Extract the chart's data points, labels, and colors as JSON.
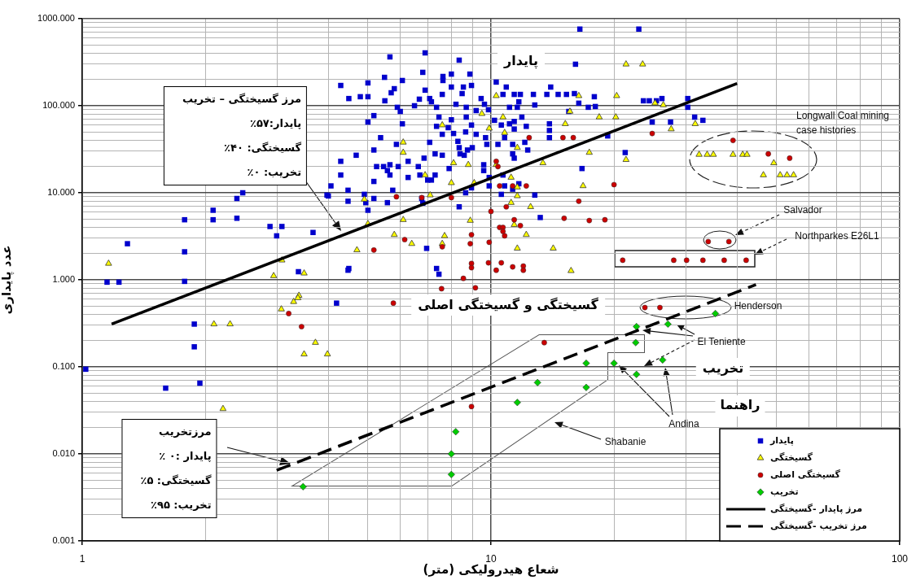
{
  "chart_data": {
    "type": "scatter",
    "xlabel": "شعاع هیدرولیکی (متر)",
    "ylabel": "عدد پایداری",
    "log": "xy",
    "grid": true,
    "legend": "bottom right",
    "legend_title": "راهنما",
    "xlim": [
      1,
      100
    ],
    "ylim": [
      0.001,
      1000
    ],
    "xticks": [
      1,
      {
        "value": 2,
        "label": null
      },
      {
        "value": 3,
        "label": null
      },
      {
        "value": 4,
        "label": null
      },
      {
        "value": 5,
        "label": null
      },
      {
        "value": 6,
        "label": null
      },
      {
        "value": 7,
        "label": null
      },
      {
        "value": 8,
        "label": null
      },
      {
        "value": 9,
        "label": null
      },
      10,
      {
        "value": 20,
        "label": null
      },
      {
        "value": 30,
        "label": null
      },
      {
        "value": 40,
        "label": null
      },
      {
        "value": 50,
        "label": null
      },
      {
        "value": 60,
        "label": null
      },
      {
        "value": 70,
        "label": null
      },
      {
        "value": 80,
        "label": null
      },
      {
        "value": 90,
        "label": null
      },
      100
    ],
    "yticks": [
      0.001,
      {
        "value": 0.002,
        "label": null
      },
      {
        "value": 0.003,
        "label": null
      },
      {
        "value": 0.004,
        "label": null
      },
      {
        "value": 0.005,
        "label": null
      },
      {
        "value": 0.006,
        "label": null
      },
      {
        "value": 0.007,
        "label": null
      },
      {
        "value": 0.008,
        "label": null
      },
      {
        "value": 0.009,
        "label": null
      },
      {
        "value": 0.01,
        "label": "0.010"
      },
      {
        "value": 0.02,
        "label": null
      },
      {
        "value": 0.03,
        "label": null
      },
      {
        "value": 0.04,
        "label": null
      },
      {
        "value": 0.05,
        "label": null
      },
      {
        "value": 0.06,
        "label": null
      },
      {
        "value": 0.07,
        "label": null
      },
      {
        "value": 0.08,
        "label": null
      },
      {
        "value": 0.09,
        "label": null
      },
      {
        "value": 0.1,
        "label": "0.100"
      },
      {
        "value": 0.2,
        "label": null
      },
      {
        "value": 0.3,
        "label": null
      },
      {
        "value": 0.4,
        "label": null
      },
      {
        "value": 0.5,
        "label": null
      },
      {
        "value": 0.6,
        "label": null
      },
      {
        "value": 0.7,
        "label": null
      },
      {
        "value": 0.8,
        "label": null
      },
      {
        "value": 0.9,
        "label": null
      },
      {
        "value": 1,
        "label": "1.000"
      },
      {
        "value": 2,
        "label": null
      },
      {
        "value": 3,
        "label": null
      },
      {
        "value": 4,
        "label": null
      },
      {
        "value": 5,
        "label": null
      },
      {
        "value": 6,
        "label": null
      },
      {
        "value": 7,
        "label": null
      },
      {
        "value": 8,
        "label": null
      },
      {
        "value": 9,
        "label": null
      },
      {
        "value": 10,
        "label": "10.000"
      },
      {
        "value": 20,
        "label": null
      },
      {
        "value": 30,
        "label": null
      },
      {
        "value": 40,
        "label": null
      },
      {
        "value": 50,
        "label": null
      },
      {
        "value": 60,
        "label": null
      },
      {
        "value": 70,
        "label": null
      },
      {
        "value": 80,
        "label": null
      },
      {
        "value": 90,
        "label": null
      },
      {
        "value": 100,
        "label": "100.000"
      },
      {
        "value": 200,
        "label": null
      },
      {
        "value": 300,
        "label": null
      },
      {
        "value": 400,
        "label": null
      },
      {
        "value": 500,
        "label": null
      },
      {
        "value": 600,
        "label": null
      },
      {
        "value": 700,
        "label": null
      },
      {
        "value": 800,
        "label": null
      },
      {
        "value": 900,
        "label": null
      },
      {
        "value": 1000,
        "label": "1000.000"
      }
    ],
    "series": [
      {
        "name": "پایدار",
        "color": "#0000cc",
        "marker": "square",
        "x": [
          1.02,
          1.15,
          1.23,
          1.29,
          1.78,
          1.78,
          1.78,
          2.09,
          2.09,
          2.39,
          2.47,
          2.39,
          2.88,
          3.08,
          2.99,
          3.67,
          3.97,
          3.38,
          4.47,
          4.19,
          1.88,
          1.88,
          1.6,
          1.94,
          6.9,
          5.66,
          8.36,
          6.81,
          7.63,
          7.63,
          8.0,
          8.88,
          5.49,
          6.07,
          4.29,
          5.0,
          5.8,
          5.7,
          6.9,
          8.96,
          8.56,
          8.0,
          10.3,
          4.49,
          4.79,
          5.0,
          5.5,
          6.68,
          7.6,
          7.08,
          7.15,
          8.5,
          9.46,
          10.9,
          10.7,
          11.4,
          11.8,
          12.7,
          13.7,
          14.6,
          15.3,
          14.0,
          9.64,
          9.86,
          11.1,
          11.7,
          12.8,
          11.6,
          15.5,
          5.9,
          6.0,
          6.5,
          7.36,
          8.21,
          8.7,
          9.2,
          5.17,
          5.0,
          6.07,
          7.46,
          8.0,
          8.7,
          7.36,
          7.86,
          8.96,
          10.2,
          10.6,
          11.1,
          11.4,
          11.4,
          11.9,
          12.2,
          13.9,
          13.9,
          13.9,
          7.6,
          8.1,
          8.67,
          9.2,
          9.7,
          10.8,
          10.4,
          11.3,
          12.1,
          5.37,
          5.87,
          7.08,
          8.3,
          9.77,
          12.3,
          5.17,
          4.68,
          4.29,
          8.36,
          8.4,
          8.6,
          8.76,
          9.0,
          7.3,
          7.6,
          6.27,
          6.86,
          11.3,
          11.4,
          5.25,
          5.46,
          5.66,
          5.58,
          5.93,
          6.64,
          7.9,
          9.6,
          9.6,
          9.9,
          10.7,
          4.29,
          5.66,
          6.27,
          6.7,
          7.0,
          7.15,
          7.3,
          5.17,
          4.06,
          5.75,
          4.47,
          4.0,
          4.47,
          4.9,
          4.94,
          5.0,
          5.17,
          5.58,
          6.77,
          6.81,
          8.96,
          9.9,
          8.67,
          10.6,
          10.8,
          11.3,
          11.7,
          12.8,
          8.36,
          13.2,
          6.96,
          4.49,
          7.36,
          7.46,
          16.5,
          23,
          16.1,
          16.0,
          17.9,
          16.4,
          17.3,
          18.0,
          23.6,
          24.4,
          25.4,
          26.2,
          30.3,
          30.3,
          24.8,
          27.5,
          31.5,
          33,
          19.3,
          21.3,
          16.7
        ],
        "values": [
          0.094,
          0.94,
          0.94,
          2.6,
          0.96,
          2.1,
          4.9,
          6.3,
          4.9,
          8.6,
          10,
          5.1,
          4.1,
          4.1,
          3.2,
          3.5,
          9.4,
          1.24,
          1.29,
          0.54,
          0.31,
          0.17,
          0.057,
          0.065,
          405,
          364,
          334,
          242,
          217,
          195,
          231,
          231,
          212,
          195,
          171,
          183,
          157,
          141,
          151,
          171,
          164,
          164,
          187,
          121,
          127,
          127,
          114,
          119,
          135,
          121,
          111,
          138,
          121,
          164,
          135,
          135,
          135,
          135,
          135,
          135,
          135,
          164,
          104,
          90,
          96,
          111,
          102,
          96,
          86,
          96,
          86,
          100,
          96,
          104,
          96,
          88,
          77,
          65,
          62,
          74,
          69,
          74,
          58,
          56,
          60,
          68,
          60,
          62,
          66,
          54,
          74,
          58,
          62,
          52,
          43,
          47,
          48,
          50,
          47,
          43,
          43,
          36,
          36,
          38,
          43,
          36,
          38,
          39,
          36,
          31,
          31,
          27,
          23,
          33,
          28,
          27,
          31,
          33,
          28,
          27,
          23,
          25,
          28,
          25,
          20,
          20,
          21,
          18,
          20,
          20,
          19,
          21,
          18,
          15,
          16,
          16,
          16,
          15,
          16,
          14,
          14,
          16,
          13.5,
          12,
          10.7,
          10.7,
          9.2,
          8.0,
          9.6,
          7.7,
          6.3,
          8.6,
          7.7,
          8.6,
          7.6,
          11.4,
          12,
          10,
          9.6,
          12,
          11,
          12.7,
          9.4,
          6.9,
          5.2,
          2.3,
          1.35,
          1.35,
          1.16,
          760,
          760,
          300,
          138,
          127,
          107,
          96,
          98,
          114,
          114,
          114,
          121,
          121,
          96,
          65,
          65,
          74,
          68,
          45,
          29,
          19
        ]
      },
      {
        "name": "گسیختگی",
        "color": "#ffff00",
        "marker": "triangle",
        "x": [
          1.16,
          2.94,
          3.49,
          3.08,
          3.39,
          3.37,
          3.29,
          3.07,
          2.1,
          2.3,
          3.72,
          3.49,
          3.98,
          2.21,
          10.3,
          9.5,
          10.7,
          15.2,
          7.6,
          9.9,
          10.8,
          11.6,
          6.1,
          6.1,
          13.4,
          8.1,
          8.8,
          10.3,
          6.9,
          11.2,
          8.0,
          9.1,
          11.6,
          11.6,
          11.2,
          7.1,
          4.9,
          12.5,
          11.4,
          12.2,
          5.0,
          6.1,
          8.9,
          5.8,
          6.4,
          7.7,
          7.6,
          4.7,
          11.6,
          14.2,
          21.4,
          23.5,
          16.4,
          20.3,
          15.6,
          25.2,
          26.4,
          18.4,
          20.2,
          27.6,
          31.6,
          17.4,
          21.4,
          32.3,
          33.8,
          35,
          39.1,
          41.3,
          42.3,
          49.2,
          46.4,
          51,
          53,
          55,
          16.8,
          15.7
        ],
        "values": [
          1.54,
          1.11,
          1.19,
          1.68,
          0.66,
          0.62,
          0.56,
          0.46,
          0.31,
          0.31,
          0.19,
          0.14,
          0.14,
          0.033,
          130,
          81,
          74,
          62,
          60,
          55,
          49,
          33,
          38,
          29,
          22,
          22,
          21,
          21,
          16,
          15,
          13,
          13,
          11.6,
          9.2,
          7.7,
          9.4,
          8.4,
          6.9,
          4.3,
          3.3,
          4.4,
          4.9,
          4.8,
          3.3,
          2.6,
          3.2,
          2.6,
          2.2,
          2.3,
          2.3,
          300,
          300,
          130,
          130,
          86,
          107,
          102,
          74,
          74,
          54,
          62,
          29,
          24,
          27.5,
          27.5,
          27.5,
          27.5,
          27.5,
          27.5,
          22,
          16,
          16,
          16,
          16,
          12,
          1.27
        ]
      },
      {
        "name": "گسیختگی اصلی",
        "color": "#cc0000",
        "marker": "circle",
        "x": [
          3.2,
          3.44,
          5.77,
          12.4,
          15.0,
          10.3,
          10.4,
          10.5,
          11.3,
          12.2,
          5.87,
          6.77,
          8.0,
          10.9,
          10.0,
          11.4,
          11.8,
          10.5,
          10.7,
          10.7,
          10.8,
          15.1,
          8.96,
          6.15,
          5.17,
          7.6,
          8.9,
          9.9,
          8.96,
          8.96,
          9.86,
          10.6,
          11.3,
          10.3,
          12.0,
          12.0,
          8.56,
          7.57,
          9.16,
          23.8,
          25.9,
          13.5,
          8.96,
          15.9,
          24.8,
          39.1,
          47.7,
          53.8,
          20.0,
          16.4,
          17.4,
          19.0,
          34,
          38.2,
          21,
          28,
          30.1,
          33,
          37.2,
          42.1
        ],
        "values": [
          0.41,
          0.29,
          0.54,
          43,
          43,
          23,
          20,
          12,
          12,
          12,
          9.0,
          8.8,
          8.8,
          6.9,
          6.1,
          4.9,
          4.2,
          4.0,
          4.0,
          3.6,
          3.2,
          5.1,
          3.3,
          2.9,
          2.2,
          2.4,
          2.6,
          2.7,
          1.54,
          1.38,
          1.57,
          1.57,
          1.41,
          1.29,
          1.44,
          1.29,
          1.04,
          0.79,
          0.81,
          0.48,
          0.48,
          0.19,
          0.035,
          43,
          48,
          40,
          28,
          25,
          12.4,
          8.0,
          4.8,
          4.9,
          2.75,
          2.75,
          1.68,
          1.68,
          1.68,
          1.68,
          1.68,
          1.68
        ]
      },
      {
        "name": "تخریب",
        "color": "#00cc00",
        "marker": "diamond",
        "x": [
          35.4,
          22.7,
          27.1,
          22.6,
          17.1,
          20.0,
          26.3,
          22.7,
          13.0,
          17.1,
          11.6,
          8.2,
          8.0,
          8.0,
          3.47
        ],
        "values": [
          0.41,
          0.29,
          0.31,
          0.19,
          0.11,
          0.11,
          0.12,
          0.082,
          0.066,
          0.058,
          0.039,
          0.018,
          0.01,
          0.0058,
          0.0042
        ]
      },
      {
        "name": "مرز پایدار -گسیختگی",
        "type": "line",
        "color": "#000000",
        "marker": "none",
        "line_style": "solid",
        "x": [
          1.18,
          40
        ],
        "values": [
          0.31,
          180
        ]
      },
      {
        "name": "مرز تخریب -گسیختگی",
        "type": "line",
        "color": "#000000",
        "marker": "none",
        "line_style": "dashed",
        "x": [
          2.99,
          44.5
        ],
        "values": [
          0.0065,
          0.88
        ]
      }
    ],
    "annotations": [
      "مرز گسیختگی – تخریب\nپایدار:۵۷٪\nگسیختگی: ۴۰٪\nتخریب: ۰٪",
      "مرزتخریب\nپایدار :۰ ٪\nگسیختگی: ۵٪\nتخریب: ۹۵٪",
      "پایدار",
      "گسیختگی و گسیختگی اصلی",
      "تخریب",
      "Longwall Coal mining\ncase histories",
      "Salvador",
      "Northparkes E26L1",
      "Henderson",
      "El Teniente",
      "Andina",
      "Shabanie"
    ]
  }
}
